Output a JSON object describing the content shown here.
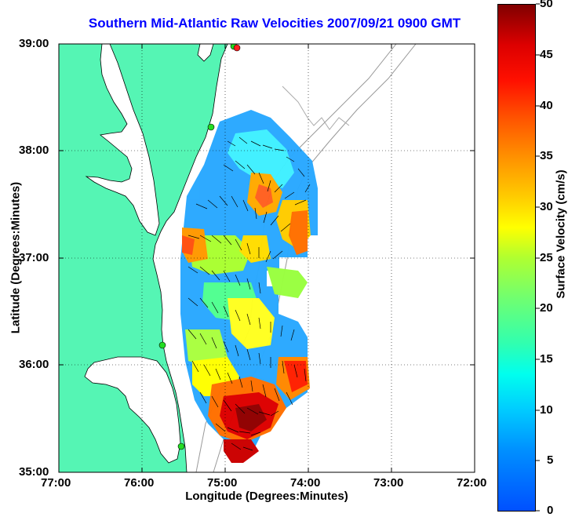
{
  "title": "Southern Mid-Atlantic Raw Velocities 2007/09/21 0900 GMT",
  "xlabel": "Longitude (Degrees:Minutes)",
  "ylabel": "Latitude (Degrees:Minutes)",
  "colorbar_label": "Surface Velocity (cm/s)",
  "x_ticks": [
    "77:00",
    "76:00",
    "75:00",
    "74:00",
    "73:00",
    "72:00"
  ],
  "y_ticks": [
    "39:00",
    "38:00",
    "37:00",
    "36:00",
    "35:00"
  ],
  "colorbar_ticks": [
    "50",
    "45",
    "40",
    "35",
    "30",
    "25",
    "20",
    "15",
    "10",
    "5",
    "0"
  ],
  "colors": {
    "land": "#55f5b4",
    "title": "#0000ff",
    "colorbar_min": "#0050ff",
    "colorbar_max": "#800000",
    "stations_green": "#22dd22",
    "station_red": "#ff2020"
  },
  "chart_data": {
    "type": "heatmap",
    "description_units": "longitude (deg W), latitude (deg N), surface velocity cm/s",
    "xlim": [
      -77,
      -72
    ],
    "ylim": [
      35,
      39
    ],
    "clim": [
      0,
      50
    ],
    "grid": true
  }
}
